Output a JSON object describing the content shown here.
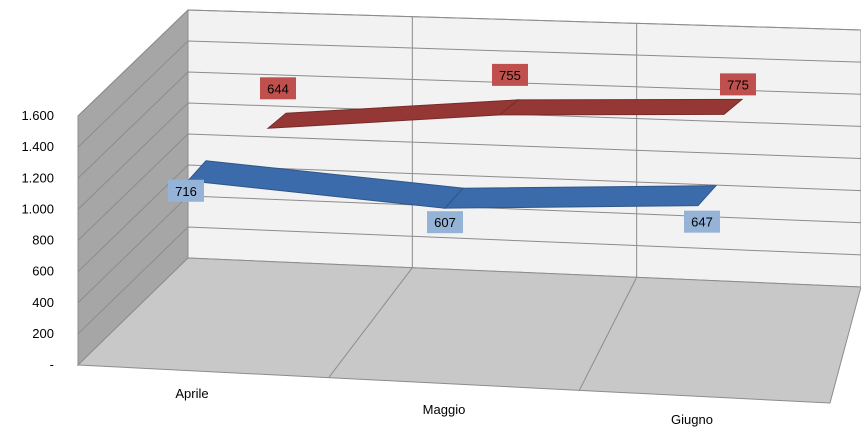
{
  "chart_data": {
    "type": "line",
    "style": "3d-ribbon",
    "categories": [
      "Aprile",
      "Maggio",
      "Giugno"
    ],
    "ylim": [
      0,
      1600
    ],
    "yticks": [
      "-",
      "200",
      "400",
      "600",
      "800",
      "1.000",
      "1.200",
      "1.400",
      "1.600"
    ],
    "grid": true,
    "legend": "none",
    "series": [
      {
        "values": [
          716,
          607,
          647
        ],
        "color": "#3b6baa",
        "label_color": "#95b3d7"
      },
      {
        "values": [
          644,
          755,
          775
        ],
        "color": "#953735",
        "label_color": "#c0504d"
      }
    ],
    "data_labels": [
      [
        "716",
        "607",
        "647"
      ],
      [
        "644",
        "755",
        "775"
      ]
    ],
    "colors": {
      "back_wall": "#f2f2f2",
      "side_wall": "#a6a6a6",
      "floor": "#c8c8c8",
      "grid": "#8c8c8c"
    }
  }
}
